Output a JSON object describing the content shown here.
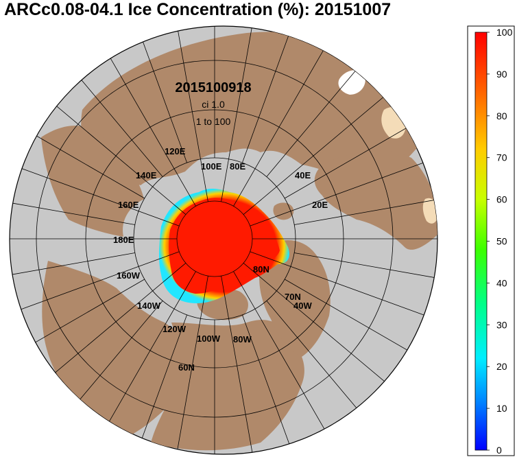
{
  "title": "ARCc0.08-04.1 Ice Concentration (%): 20151007",
  "annotation": {
    "date": "2015100918",
    "ci": "ci 1.0",
    "range": "1 to 100"
  },
  "colorbar": {
    "ticks": [
      "100",
      "90",
      "80",
      "70",
      "60",
      "50",
      "40",
      "30",
      "20",
      "10",
      "0"
    ],
    "colors": [
      "#ff0000",
      "#ff6a00",
      "#ffcc00",
      "#c8ff00",
      "#3cff00",
      "#00ff88",
      "#00eeff",
      "#0088ff",
      "#0000ff"
    ]
  },
  "map": {
    "ocean_color": "#c8c8c8",
    "land_color": "#b0896a",
    "ice_color": "#ff1a00",
    "longitude_labels": [
      "120E",
      "100E",
      "80E",
      "140E",
      "40E",
      "160E",
      "20E",
      "180E",
      "160W",
      "140W",
      "120W",
      "100W",
      "80W",
      "40W"
    ],
    "latitude_labels": [
      "80N",
      "70N",
      "60N"
    ]
  }
}
